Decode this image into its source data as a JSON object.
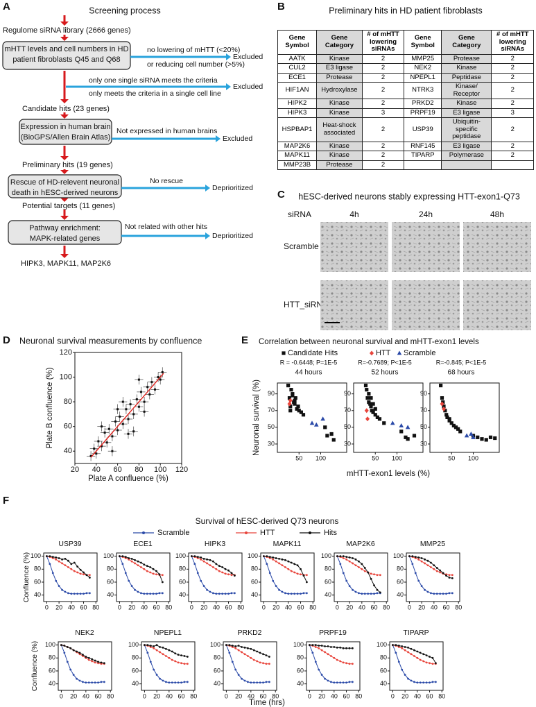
{
  "panel_a": {
    "letter": "A",
    "title": "Screening process",
    "stages": [
      "Regulome siRNA library (2666 genes)",
      "Candidate hits (23 genes)",
      "Preliminary hits (19 genes)",
      "Potential targets (11 genes)",
      "HIPK3, MAPK11, MAP2K6"
    ],
    "filters": [
      {
        "box": [
          "mHTT levels and cell numbers in HD",
          "patient fibroblasts Q45 and Q68"
        ],
        "criteria": [
          "no lowering of mHTT (<20%)",
          "or reducing cell number (>5%)"
        ],
        "outcome": "Excluded"
      },
      {
        "criteria": [
          "only one single siRNA meets the criteria",
          "only meets the criteria in a single cell line"
        ],
        "outcome": "Excluded"
      },
      {
        "box": [
          "Expression in human brain",
          "(BioGPS/Allen Brain Atlas)"
        ],
        "criteria": [
          "Not expressed in human brains"
        ],
        "outcome": "Excluded"
      },
      {
        "box": [
          "Rescue of HD-relevent neuronal",
          "death in hESC-derived neurons"
        ],
        "criteria": [
          "No rescue"
        ],
        "outcome": "Deprioritized"
      },
      {
        "box": [
          "Pathway enrichment:",
          "MAPK-related genes"
        ],
        "criteria": [
          "Not related with other hits"
        ],
        "outcome": "Deprioritized"
      }
    ]
  },
  "panel_b": {
    "letter": "B",
    "title": "Preliminary hits in HD patient fibroblasts",
    "header": [
      "Gene Symbol",
      "Gene Category",
      "# of mHTT lowering siRNAs",
      "Gene Symbol",
      "Gene Category",
      "# of mHTT lowering siRNAs"
    ],
    "rows": [
      [
        "AATK",
        "Kinase",
        2,
        "MMP25",
        "Protease",
        2
      ],
      [
        "CUL2",
        "E3 ligase",
        2,
        "NEK2",
        "Kinase",
        2
      ],
      [
        "ECE1",
        "Protease",
        2,
        "NPEPL1",
        "Peptidase",
        2
      ],
      [
        "HIF1AN",
        "Hydroxylase",
        2,
        "NTRK3",
        "Kinase/ Receptor",
        2
      ],
      [
        "HIPK2",
        "Kinase",
        2,
        "PRKD2",
        "Kinase",
        2
      ],
      [
        "HIPK3",
        "Kinase",
        3,
        "PRPF19",
        "E3 ligase",
        3
      ],
      [
        "HSPBAP1",
        "Heat-shock associated",
        2,
        "USP39",
        "Ubiquitin-specific peptidase",
        2
      ],
      [
        "MAP2K6",
        "Kinase",
        2,
        "RNF145",
        "E3 ligase",
        2
      ],
      [
        "MAPK11",
        "Kinase",
        2,
        "TIPARP",
        "Polymerase",
        2
      ],
      [
        "MMP23B",
        "Protease",
        2,
        null,
        null,
        null
      ]
    ]
  },
  "panel_c": {
    "letter": "C",
    "title": "hESC-derived neurons stably expressing HTT-exon1-Q73",
    "corner_label": "siRNA",
    "columns": [
      "4h",
      "24h",
      "48h"
    ],
    "rows": [
      "Scramble",
      "HTT_siRNA"
    ]
  },
  "panel_d": {
    "letter": "D",
    "type": "scatter",
    "title": "Neuronal survival measurements by confluence",
    "xlabel": "Plate A confluence (%)",
    "ylabel": "Plate B confluence (%)",
    "xlim": [
      20,
      120
    ],
    "ylim": [
      30,
      120
    ],
    "xticks": [
      20,
      40,
      60,
      80,
      100,
      120
    ],
    "yticks": [
      40,
      60,
      80,
      100,
      120
    ],
    "color": "#111111",
    "x": [
      35,
      38,
      40,
      42,
      45,
      48,
      50,
      52,
      55,
      58,
      60,
      62,
      65,
      68,
      70,
      72,
      75,
      78,
      80,
      82,
      85,
      88,
      90,
      92,
      95,
      98,
      100,
      102,
      45,
      55,
      65,
      75,
      85,
      60,
      70,
      80
    ],
    "y": [
      36,
      42,
      38,
      48,
      44,
      55,
      47,
      58,
      52,
      64,
      57,
      68,
      62,
      74,
      66,
      78,
      70,
      82,
      76,
      88,
      80,
      92,
      86,
      96,
      90,
      100,
      98,
      104,
      60,
      40,
      80,
      56,
      72,
      74,
      54,
      98
    ],
    "xerr": 4,
    "yerr": 4,
    "fit": {
      "x": [
        35,
        103
      ],
      "y": [
        35,
        103
      ],
      "color": "#e0201b"
    }
  },
  "panel_e": {
    "letter": "E",
    "type": "scatter",
    "title": "Correlation between neuronal survival and mHTT-exon1 levels",
    "xlabel": "mHTT-exon1 levels (%)",
    "ylabel": "Neuronal survival (%)",
    "xlim": [
      0,
      160
    ],
    "ylim": [
      20,
      103
    ],
    "xticks": [
      50,
      100
    ],
    "yticks": [
      30,
      50,
      70,
      90
    ],
    "legend": [
      {
        "name": "Candidate Hits",
        "color": "#111111",
        "marker": "square"
      },
      {
        "name": "HTT",
        "color": "#e8453c",
        "marker": "diamond"
      },
      {
        "name": "Scramble",
        "color": "#2b4aa8",
        "marker": "triangle"
      }
    ],
    "plots": [
      {
        "stats": "R = -0.6448; P=1E-5",
        "subtitle": "44 hours",
        "groups": [
          {
            "x": [
              25,
              28,
              30,
              32,
              35,
              38,
              40,
              42,
              45,
              48,
              50,
              55,
              60,
              30,
              35,
              40,
              110,
              115,
              125,
              130
            ],
            "y": [
              100,
              85,
              75,
              95,
              90,
              80,
              78,
              85,
              72,
              75,
              70,
              68,
              65,
              70,
              88,
              82,
              50,
              40,
              42,
              35
            ]
          },
          {
            "x": [
              28,
              30
            ],
            "y": [
              78,
              82
            ]
          },
          {
            "x": [
              80,
              90,
              105
            ],
            "y": [
              55,
              53,
              60
            ]
          }
        ]
      },
      {
        "stats": "R=-0.7689; P<1E-5",
        "subtitle": "52 hours",
        "groups": [
          {
            "x": [
              28,
              30,
              32,
              35,
              38,
              40,
              42,
              45,
              50,
              55,
              60,
              70,
              35,
              40,
              45,
              110,
              120,
              125,
              140,
              50
            ],
            "y": [
              100,
              95,
              85,
              80,
              78,
              75,
              70,
              68,
              65,
              62,
              60,
              55,
              90,
              85,
              78,
              45,
              38,
              36,
              40,
              72
            ]
          },
          {
            "x": [
              30,
              32
            ],
            "y": [
              70,
              60
            ]
          },
          {
            "x": [
              90,
              110,
              125
            ],
            "y": [
              55,
              52,
              50
            ]
          }
        ]
      },
      {
        "stats": "R=-0.845; P<1E-5",
        "subtitle": "68 hours",
        "groups": [
          {
            "x": [
              25,
              28,
              30,
              32,
              35,
              38,
              40,
              45,
              50,
              55,
              60,
              65,
              70,
              100,
              110,
              120,
              130,
              140,
              150,
              45
            ],
            "y": [
              100,
              85,
              80,
              75,
              70,
              65,
              62,
              60,
              55,
              52,
              50,
              48,
              45,
              40,
              38,
              36,
              35,
              38,
              37,
              58
            ]
          },
          {
            "x": [
              28,
              32
            ],
            "y": [
              78,
              72
            ]
          },
          {
            "x": [
              85,
              95,
              100
            ],
            "y": [
              40,
              42,
              38
            ]
          }
        ]
      }
    ]
  },
  "panel_f": {
    "letter": "F",
    "type": "line",
    "title": "Survival of hESC-derived Q73 neurons",
    "xlabel": "Time (hrs)",
    "ylabel": "Confluence (%)",
    "xlim": [
      -5,
      82
    ],
    "ylim": [
      30,
      105
    ],
    "xticks": [
      0,
      20,
      40,
      60,
      80
    ],
    "yticks": [
      40,
      60,
      80,
      100
    ],
    "x": [
      0,
      5,
      10,
      15,
      20,
      25,
      30,
      35,
      40,
      45,
      50,
      55,
      60,
      65,
      70
    ],
    "series": [
      {
        "name": "Scramble",
        "color": "#2b4aa8",
        "values": [
          100,
          88,
          74,
          62,
          54,
          48,
          45,
          43,
          42,
          42,
          42,
          42,
          42,
          43,
          43
        ]
      },
      {
        "name": "HTT",
        "color": "#e8453c",
        "values": [
          100,
          99,
          97,
          95,
          92,
          89,
          86,
          83,
          80,
          77,
          75,
          73,
          72,
          71,
          71
        ]
      },
      {
        "name": "Hits",
        "color": "#111111"
      }
    ],
    "plots": [
      {
        "title": "USP39",
        "hits": [
          100,
          100,
          99,
          98,
          97,
          95,
          96,
          93,
          88,
          90,
          84,
          79,
          75,
          71,
          67
        ]
      },
      {
        "title": "ECE1",
        "hits": [
          100,
          100,
          99,
          97,
          96,
          94,
          92,
          90,
          87,
          85,
          83,
          80,
          77,
          72,
          60
        ]
      },
      {
        "title": "HIPK3",
        "hits": [
          100,
          100,
          99,
          98,
          96,
          95,
          94,
          92,
          88,
          85,
          83,
          80,
          78,
          74,
          70
        ]
      },
      {
        "title": "MAPK11",
        "hits": [
          100,
          100,
          99,
          98,
          97,
          96,
          95,
          94,
          92,
          90,
          88,
          86,
          80,
          70,
          60
        ]
      },
      {
        "title": "MAP2K6",
        "hits": [
          100,
          100,
          100,
          99,
          98,
          97,
          95,
          92,
          88,
          82,
          75,
          65,
          55,
          48,
          44
        ]
      },
      {
        "title": "MMP25",
        "hits": [
          100,
          100,
          99,
          98,
          97,
          95,
          93,
          90,
          86,
          82,
          78,
          74,
          70,
          67,
          66
        ]
      },
      {
        "title": "NEK2",
        "hits": [
          100,
          99,
          97,
          95,
          92,
          90,
          88,
          85,
          82,
          80,
          78,
          76,
          74,
          73,
          72
        ]
      },
      {
        "title": "NPEPL1",
        "hits": [
          100,
          100,
          99,
          98,
          100,
          97,
          96,
          94,
          92,
          90,
          87,
          85,
          84,
          83,
          82
        ]
      },
      {
        "title": "PRKD2",
        "hits": [
          100,
          100,
          99,
          98,
          99,
          97,
          96,
          95,
          94,
          92,
          90,
          88,
          86,
          84,
          82
        ]
      },
      {
        "title": "PRPF19",
        "hits": [
          100,
          100,
          100,
          99,
          99,
          98,
          98,
          97,
          97,
          96,
          96,
          95,
          95,
          95,
          95
        ]
      },
      {
        "title": "TIPARP",
        "hits": [
          100,
          100,
          99,
          98,
          97,
          96,
          94,
          92,
          90,
          88,
          86,
          84,
          82,
          80,
          72
        ]
      }
    ]
  }
}
